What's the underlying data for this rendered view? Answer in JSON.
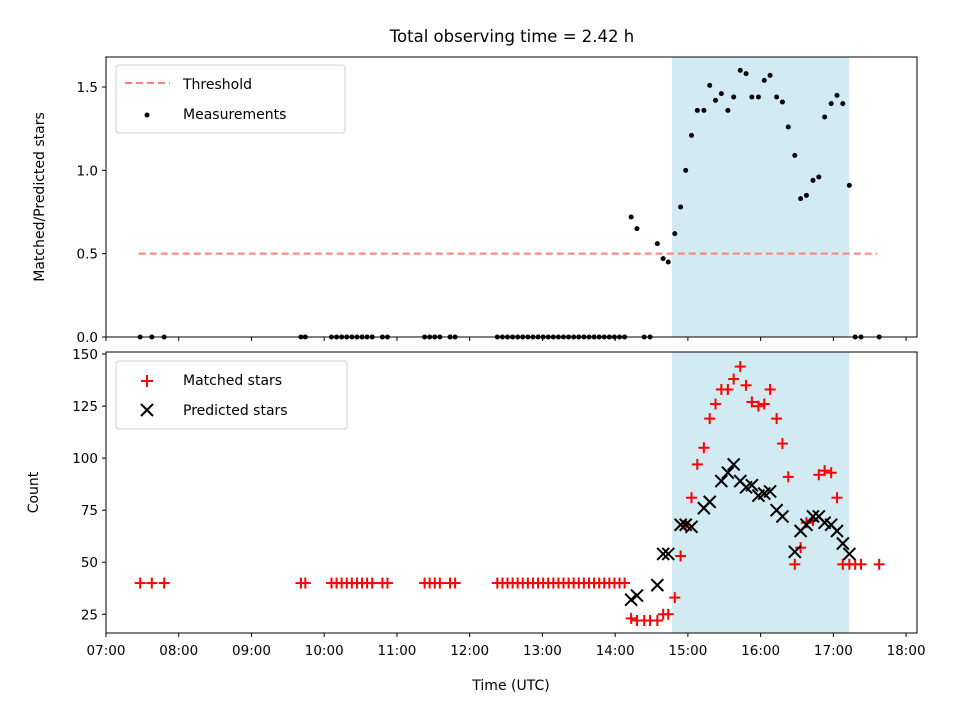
{
  "title": "Total observing time = 2.42 h",
  "chart_data": [
    {
      "type": "scatter",
      "panel": "top",
      "ylabel": "Matched/Predicted stars",
      "xlabel": "",
      "xlim": [
        7.0,
        18.15
      ],
      "ylim": [
        0,
        1.68
      ],
      "yticks": [
        0.0,
        0.5,
        1.0,
        1.5
      ],
      "ytick_labels": [
        "0.0",
        "0.5",
        "1.0",
        "1.5"
      ],
      "threshold": {
        "name": "Threshold",
        "value": 0.5,
        "x_start": 7.45,
        "x_end": 17.6,
        "color": "#ff7f7f",
        "style": "dashed"
      },
      "highlight_span": {
        "x_start": 14.78,
        "x_end": 17.22,
        "color": "#add8e6"
      },
      "legend": {
        "location": "upper left",
        "entries": [
          "Threshold",
          "Measurements"
        ]
      },
      "series": [
        {
          "name": "Measurements",
          "marker": "dot",
          "color": "#000000",
          "x": [
            7.47,
            7.63,
            7.8,
            9.68,
            9.74,
            10.1,
            10.17,
            10.24,
            10.31,
            10.38,
            10.45,
            10.52,
            10.59,
            10.66,
            10.8,
            10.87,
            11.38,
            11.45,
            11.52,
            11.59,
            11.73,
            11.8,
            12.38,
            12.45,
            12.52,
            12.59,
            12.66,
            12.73,
            12.8,
            12.87,
            12.94,
            13.01,
            13.08,
            13.15,
            13.22,
            13.29,
            13.36,
            13.43,
            13.5,
            13.57,
            13.64,
            13.71,
            13.78,
            13.85,
            13.92,
            13.99,
            14.06,
            14.13,
            14.22,
            14.3,
            14.4,
            14.48,
            14.58,
            14.66,
            14.73,
            14.82,
            14.9,
            14.97,
            15.05,
            15.13,
            15.22,
            15.3,
            15.38,
            15.46,
            15.55,
            15.63,
            15.72,
            15.8,
            15.88,
            15.97,
            16.05,
            16.13,
            16.22,
            16.3,
            16.38,
            16.47,
            16.55,
            16.63,
            16.72,
            16.8,
            16.88,
            16.97,
            17.05,
            17.13,
            17.22,
            17.3,
            17.38,
            17.63
          ],
          "y": [
            0,
            0,
            0,
            0,
            0,
            0,
            0,
            0,
            0,
            0,
            0,
            0,
            0,
            0,
            0,
            0,
            0,
            0,
            0,
            0,
            0,
            0,
            0,
            0,
            0,
            0,
            0,
            0,
            0,
            0,
            0,
            0,
            0,
            0,
            0,
            0,
            0,
            0,
            0,
            0,
            0,
            0,
            0,
            0,
            0,
            0,
            0,
            0,
            0.72,
            0.65,
            0,
            0,
            0.56,
            0.47,
            0.45,
            0.62,
            0.78,
            1.0,
            1.21,
            1.36,
            1.36,
            1.51,
            1.42,
            1.46,
            1.36,
            1.44,
            1.6,
            1.58,
            1.44,
            1.44,
            1.54,
            1.57,
            1.44,
            1.41,
            1.26,
            1.09,
            0.83,
            0.85,
            0.94,
            0.96,
            1.32,
            1.4,
            1.45,
            1.4,
            0.91,
            0,
            0,
            0
          ]
        }
      ]
    },
    {
      "type": "scatter",
      "panel": "bottom",
      "xlabel": "Time (UTC)",
      "ylabel": "Count",
      "xlim": [
        7.0,
        18.15
      ],
      "ylim": [
        16,
        151
      ],
      "yticks": [
        25,
        50,
        75,
        100,
        125,
        150
      ],
      "ytick_labels": [
        "25",
        "50",
        "75",
        "100",
        "125",
        "150"
      ],
      "xticks": [
        7,
        8,
        9,
        10,
        11,
        12,
        13,
        14,
        15,
        16,
        17,
        18
      ],
      "xtick_labels": [
        "07:00",
        "08:00",
        "09:00",
        "10:00",
        "11:00",
        "12:00",
        "13:00",
        "14:00",
        "15:00",
        "16:00",
        "17:00",
        "18:00"
      ],
      "highlight_span": {
        "x_start": 14.78,
        "x_end": 17.22,
        "color": "#add8e6"
      },
      "legend": {
        "location": "upper left",
        "entries": [
          "Matched stars",
          "Predicted stars"
        ]
      },
      "series": [
        {
          "name": "Matched stars",
          "marker": "plus",
          "color": "#ff0000",
          "x": [
            7.47,
            7.63,
            7.8,
            9.68,
            9.74,
            10.1,
            10.17,
            10.24,
            10.31,
            10.38,
            10.45,
            10.52,
            10.59,
            10.66,
            10.8,
            10.87,
            11.38,
            11.45,
            11.52,
            11.59,
            11.73,
            11.8,
            12.38,
            12.45,
            12.52,
            12.59,
            12.66,
            12.73,
            12.8,
            12.87,
            12.94,
            13.01,
            13.08,
            13.15,
            13.22,
            13.29,
            13.36,
            13.43,
            13.5,
            13.57,
            13.64,
            13.71,
            13.78,
            13.85,
            13.92,
            13.99,
            14.06,
            14.13,
            14.22,
            14.3,
            14.4,
            14.48,
            14.58,
            14.66,
            14.73,
            14.82,
            14.9,
            14.97,
            15.05,
            15.13,
            15.22,
            15.3,
            15.38,
            15.46,
            15.55,
            15.63,
            15.72,
            15.8,
            15.88,
            15.97,
            16.05,
            16.13,
            16.22,
            16.3,
            16.38,
            16.47,
            16.55,
            16.63,
            16.72,
            16.8,
            16.88,
            16.97,
            17.05,
            17.13,
            17.22,
            17.3,
            17.38,
            17.63
          ],
          "y": [
            40,
            40,
            40,
            40,
            40,
            40,
            40,
            40,
            40,
            40,
            40,
            40,
            40,
            40,
            40,
            40,
            40,
            40,
            40,
            40,
            40,
            40,
            40,
            40,
            40,
            40,
            40,
            40,
            40,
            40,
            40,
            40,
            40,
            40,
            40,
            40,
            40,
            40,
            40,
            40,
            40,
            40,
            40,
            40,
            40,
            40,
            40,
            40,
            23,
            22,
            22,
            22,
            22,
            25,
            25,
            33,
            53,
            68,
            81,
            97,
            105,
            119,
            126,
            133,
            133,
            138,
            144,
            135,
            127,
            125,
            126,
            133,
            119,
            107,
            91,
            49,
            57,
            69,
            70,
            92,
            94,
            93,
            81,
            49,
            49,
            49,
            49,
            49
          ]
        },
        {
          "name": "Predicted stars",
          "marker": "x",
          "color": "#000000",
          "x": [
            14.22,
            14.3,
            14.58,
            14.66,
            14.73,
            14.9,
            14.97,
            15.05,
            15.22,
            15.3,
            15.46,
            15.55,
            15.63,
            15.72,
            15.8,
            15.88,
            15.97,
            16.05,
            16.13,
            16.22,
            16.3,
            16.47,
            16.55,
            16.63,
            16.72,
            16.8,
            16.88,
            16.97,
            17.05,
            17.13,
            17.22
          ],
          "y": [
            32,
            34,
            39,
            54,
            54,
            68,
            68,
            67,
            76,
            79,
            89,
            93,
            97,
            89,
            86,
            87,
            82,
            83,
            84,
            75,
            72,
            55,
            65,
            68,
            72,
            72,
            69,
            68,
            65,
            59,
            54
          ]
        }
      ]
    }
  ]
}
